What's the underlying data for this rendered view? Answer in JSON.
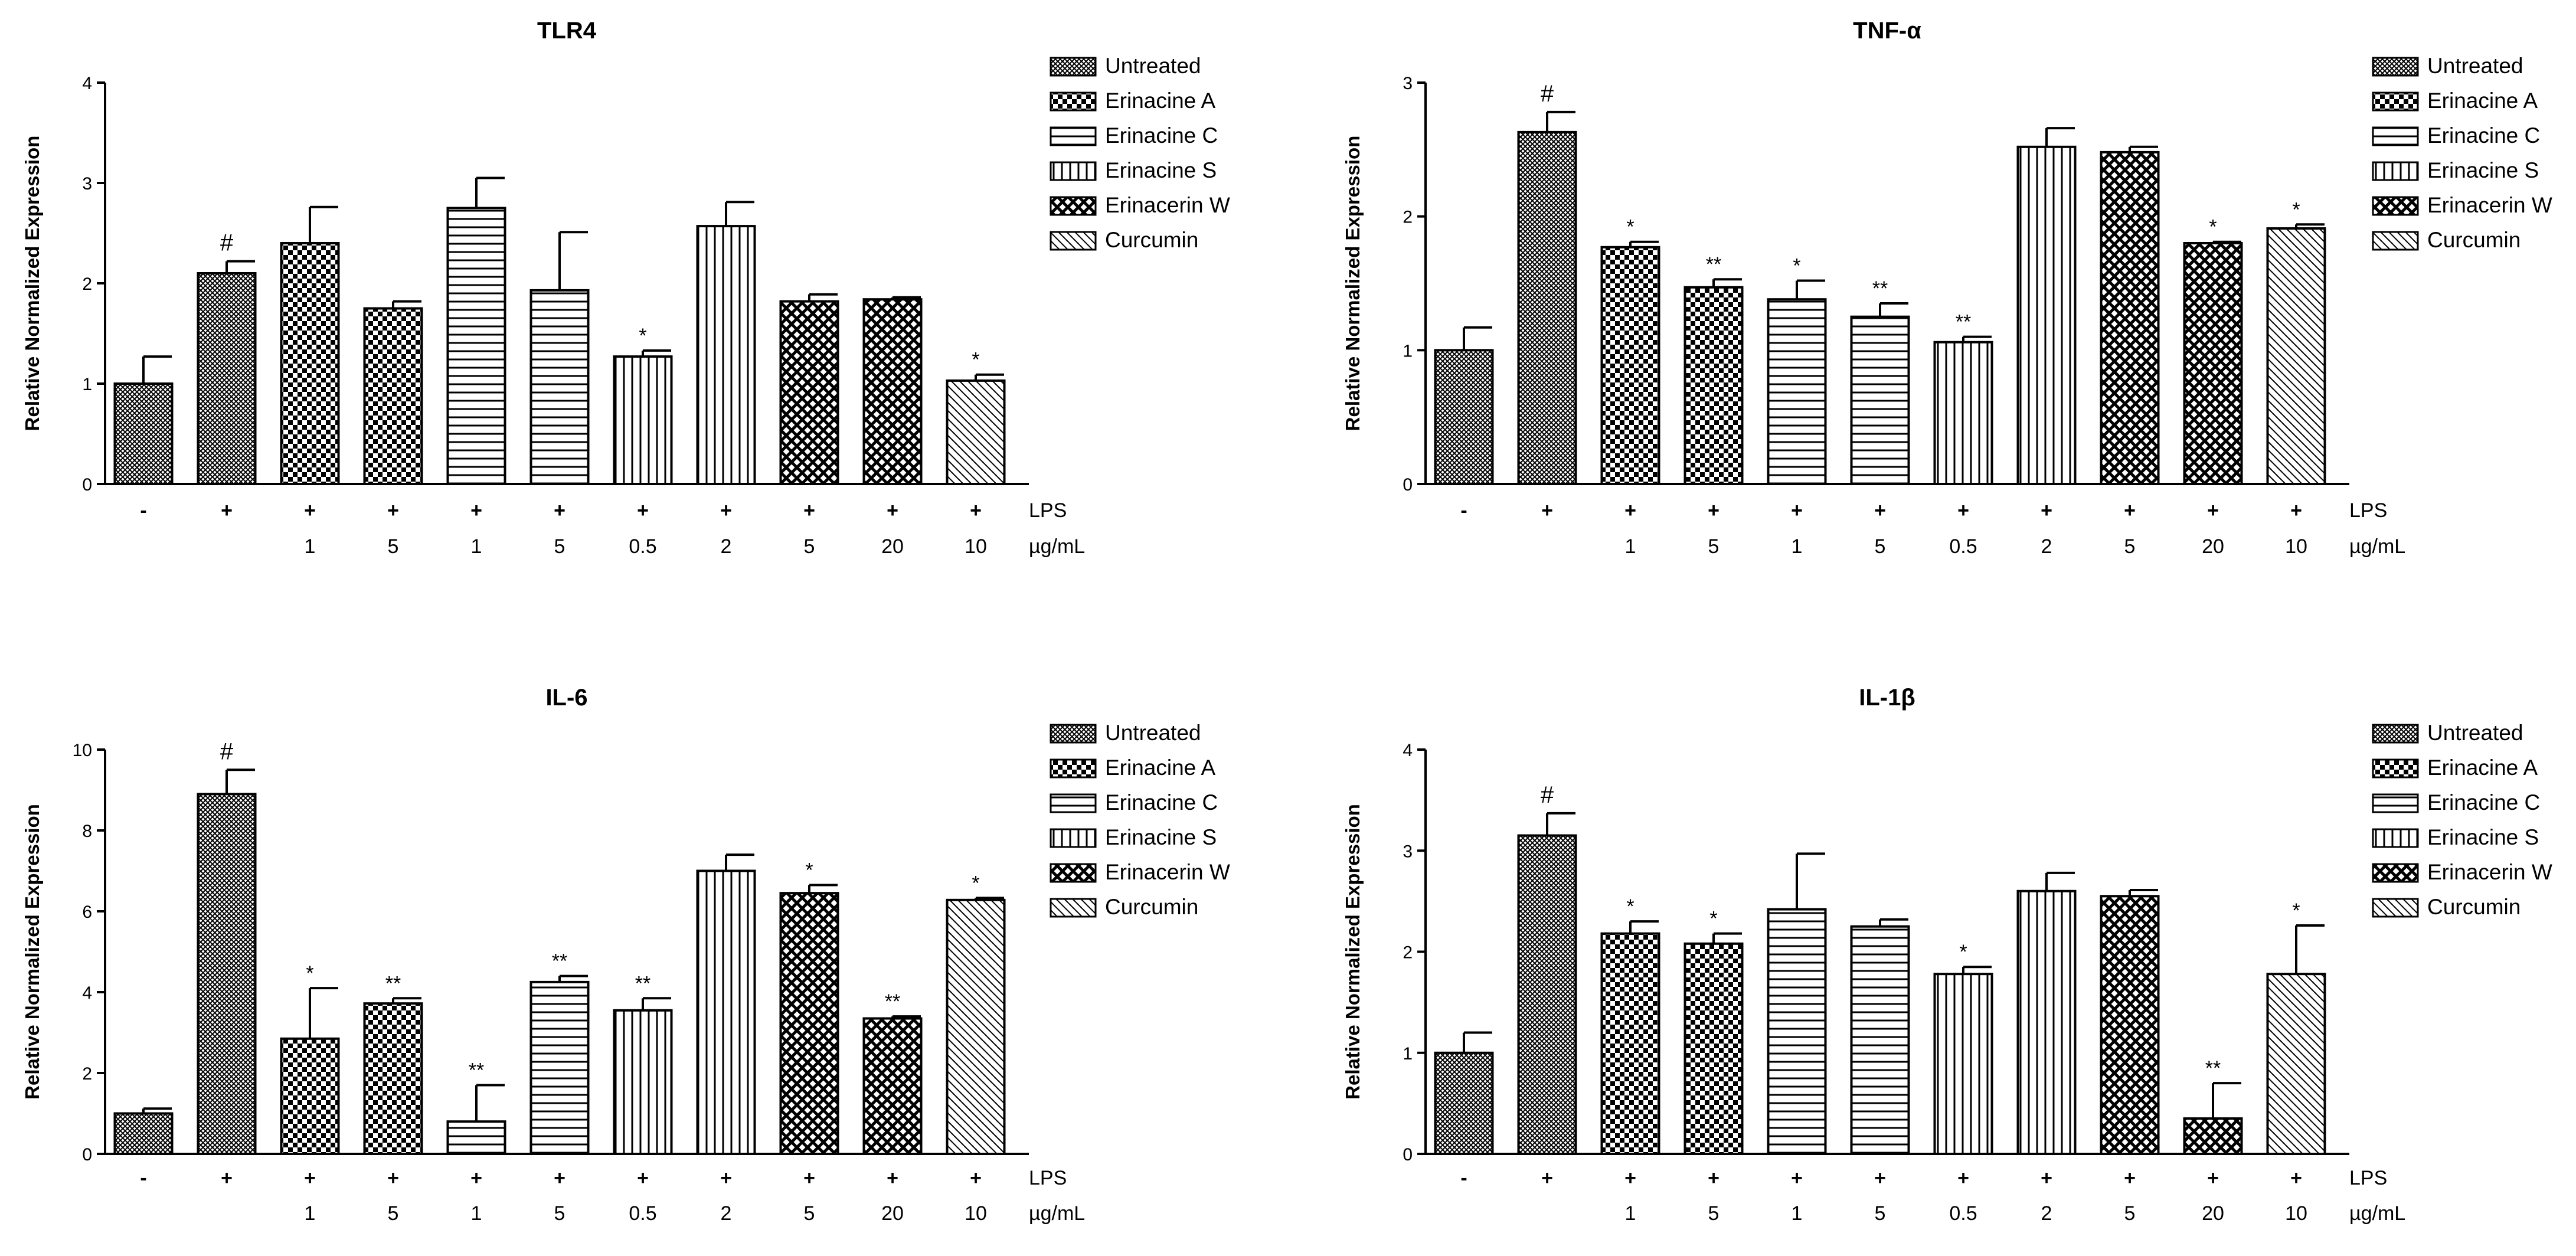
{
  "figure": {
    "background": "#ffffff",
    "bar_stroke": "#000000"
  },
  "treatments": {
    "Untreated": {
      "pattern": "pat-untreated"
    },
    "Erinacine A": {
      "pattern": "pat-erinA"
    },
    "Erinacine C": {
      "pattern": "pat-erinC"
    },
    "Erinacine S": {
      "pattern": "pat-erinS"
    },
    "Erinacerin W": {
      "pattern": "pat-erinW"
    },
    "Curcumin": {
      "pattern": "pat-curcumin"
    }
  },
  "chart_data": [
    {
      "type": "bar",
      "title": "TLR4",
      "ylabel": "Relative Normalized Expression",
      "ylim": [
        0,
        4
      ],
      "yticks": [
        0,
        1,
        2,
        3,
        4
      ],
      "row_labels": [
        "LPS",
        "µg/mL"
      ],
      "lps": [
        "-",
        "+",
        "+",
        "+",
        "+",
        "+",
        "+",
        "+",
        "+",
        "+",
        "+"
      ],
      "doses": [
        "",
        "",
        "1",
        "5",
        "1",
        "5",
        "0.5",
        "2",
        "5",
        "20",
        "10"
      ],
      "treatments": [
        "Untreated",
        "Untreated",
        "Erinacine A",
        "Erinacine A",
        "Erinacine C",
        "Erinacine C",
        "Erinacine S",
        "Erinacine S",
        "Erinacerin W",
        "Erinacerin W",
        "Curcumin"
      ],
      "values": [
        1.0,
        2.1,
        2.4,
        1.75,
        2.75,
        1.93,
        1.27,
        2.57,
        1.82,
        1.84,
        1.03
      ],
      "errors": [
        0.27,
        0.12,
        0.36,
        0.07,
        0.3,
        0.58,
        0.06,
        0.24,
        0.07,
        0.02,
        0.06
      ],
      "significance": [
        "",
        "#",
        "",
        "",
        "",
        "",
        "*",
        "",
        "",
        "",
        "*"
      ],
      "legend": [
        "Untreated",
        "Erinacine A",
        "Erinacine C",
        "Erinacine S",
        "Erinacerin W",
        "Curcumin"
      ]
    },
    {
      "type": "bar",
      "title": "TNF-α",
      "ylabel": "Relative Normalized Expression",
      "ylim": [
        0,
        3
      ],
      "yticks": [
        0,
        1,
        2,
        3
      ],
      "row_labels": [
        "LPS",
        "µg/mL"
      ],
      "lps": [
        "-",
        "+",
        "+",
        "+",
        "+",
        "+",
        "+",
        "+",
        "+",
        "+",
        "+"
      ],
      "doses": [
        "",
        "",
        "1",
        "5",
        "1",
        "5",
        "0.5",
        "2",
        "5",
        "20",
        "10"
      ],
      "treatments": [
        "Untreated",
        "Untreated",
        "Erinacine A",
        "Erinacine A",
        "Erinacine C",
        "Erinacine C",
        "Erinacine S",
        "Erinacine S",
        "Erinacerin W",
        "Erinacerin W",
        "Curcumin"
      ],
      "values": [
        1.0,
        2.63,
        1.77,
        1.47,
        1.38,
        1.25,
        1.06,
        2.52,
        2.48,
        1.8,
        1.91
      ],
      "errors": [
        0.17,
        0.15,
        0.04,
        0.06,
        0.14,
        0.1,
        0.04,
        0.14,
        0.04,
        0.01,
        0.03
      ],
      "significance": [
        "",
        "#",
        "*",
        "**",
        "*",
        "**",
        "**",
        "",
        "",
        "*",
        "*"
      ],
      "legend": [
        "Untreated",
        "Erinacine A",
        "Erinacine C",
        "Erinacine S",
        "Erinacerin W",
        "Curcumin"
      ]
    },
    {
      "type": "bar",
      "title": "IL-6",
      "ylabel": "Relative Normalized Expression",
      "ylim": [
        0,
        10
      ],
      "yticks": [
        0,
        2,
        4,
        6,
        8,
        10
      ],
      "row_labels": [
        "LPS",
        "µg/mL"
      ],
      "lps": [
        "-",
        "+",
        "+",
        "+",
        "+",
        "+",
        "+",
        "+",
        "+",
        "+",
        "+"
      ],
      "doses": [
        "",
        "",
        "1",
        "5",
        "1",
        "5",
        "0.5",
        "2",
        "5",
        "20",
        "10"
      ],
      "treatments": [
        "Untreated",
        "Untreated",
        "Erinacine A",
        "Erinacine A",
        "Erinacine C",
        "Erinacine C",
        "Erinacine S",
        "Erinacine S",
        "Erinacerin W",
        "Erinacerin W",
        "Curcumin"
      ],
      "values": [
        1.0,
        8.9,
        2.85,
        3.72,
        0.8,
        4.25,
        3.55,
        7.0,
        6.45,
        3.35,
        6.28
      ],
      "errors": [
        0.12,
        0.6,
        1.25,
        0.13,
        0.9,
        0.15,
        0.3,
        0.4,
        0.2,
        0.05,
        0.05
      ],
      "significance": [
        "",
        "#",
        "*",
        "**",
        "**",
        "**",
        "**",
        "",
        "*",
        "**",
        "*"
      ],
      "legend": [
        "Untreated",
        "Erinacine A",
        "Erinacine C",
        "Erinacine S",
        "Erinacerin W",
        "Curcumin"
      ]
    },
    {
      "type": "bar",
      "title": "IL-1β",
      "ylabel": "Relative Normalized Expression",
      "ylim": [
        0,
        4
      ],
      "yticks": [
        0,
        1,
        2,
        3,
        4
      ],
      "row_labels": [
        "LPS",
        "µg/mL"
      ],
      "lps": [
        "-",
        "+",
        "+",
        "+",
        "+",
        "+",
        "+",
        "+",
        "+",
        "+",
        "+"
      ],
      "doses": [
        "",
        "",
        "1",
        "5",
        "1",
        "5",
        "0.5",
        "2",
        "5",
        "20",
        "10"
      ],
      "treatments": [
        "Untreated",
        "Untreated",
        "Erinacine A",
        "Erinacine A",
        "Erinacine C",
        "Erinacine C",
        "Erinacine S",
        "Erinacine S",
        "Erinacerin W",
        "Erinacerin W",
        "Curcumin"
      ],
      "values": [
        1.0,
        3.15,
        2.18,
        2.08,
        2.42,
        2.25,
        1.78,
        2.6,
        2.55,
        0.35,
        1.78
      ],
      "errors": [
        0.2,
        0.22,
        0.12,
        0.1,
        0.55,
        0.07,
        0.07,
        0.18,
        0.06,
        0.35,
        0.48
      ],
      "significance": [
        "",
        "#",
        "*",
        "*",
        "",
        "",
        "*",
        "",
        "",
        "**",
        "*"
      ],
      "legend": [
        "Untreated",
        "Erinacine A",
        "Erinacine C",
        "Erinacine S",
        "Erinacerin W",
        "Curcumin"
      ]
    }
  ]
}
